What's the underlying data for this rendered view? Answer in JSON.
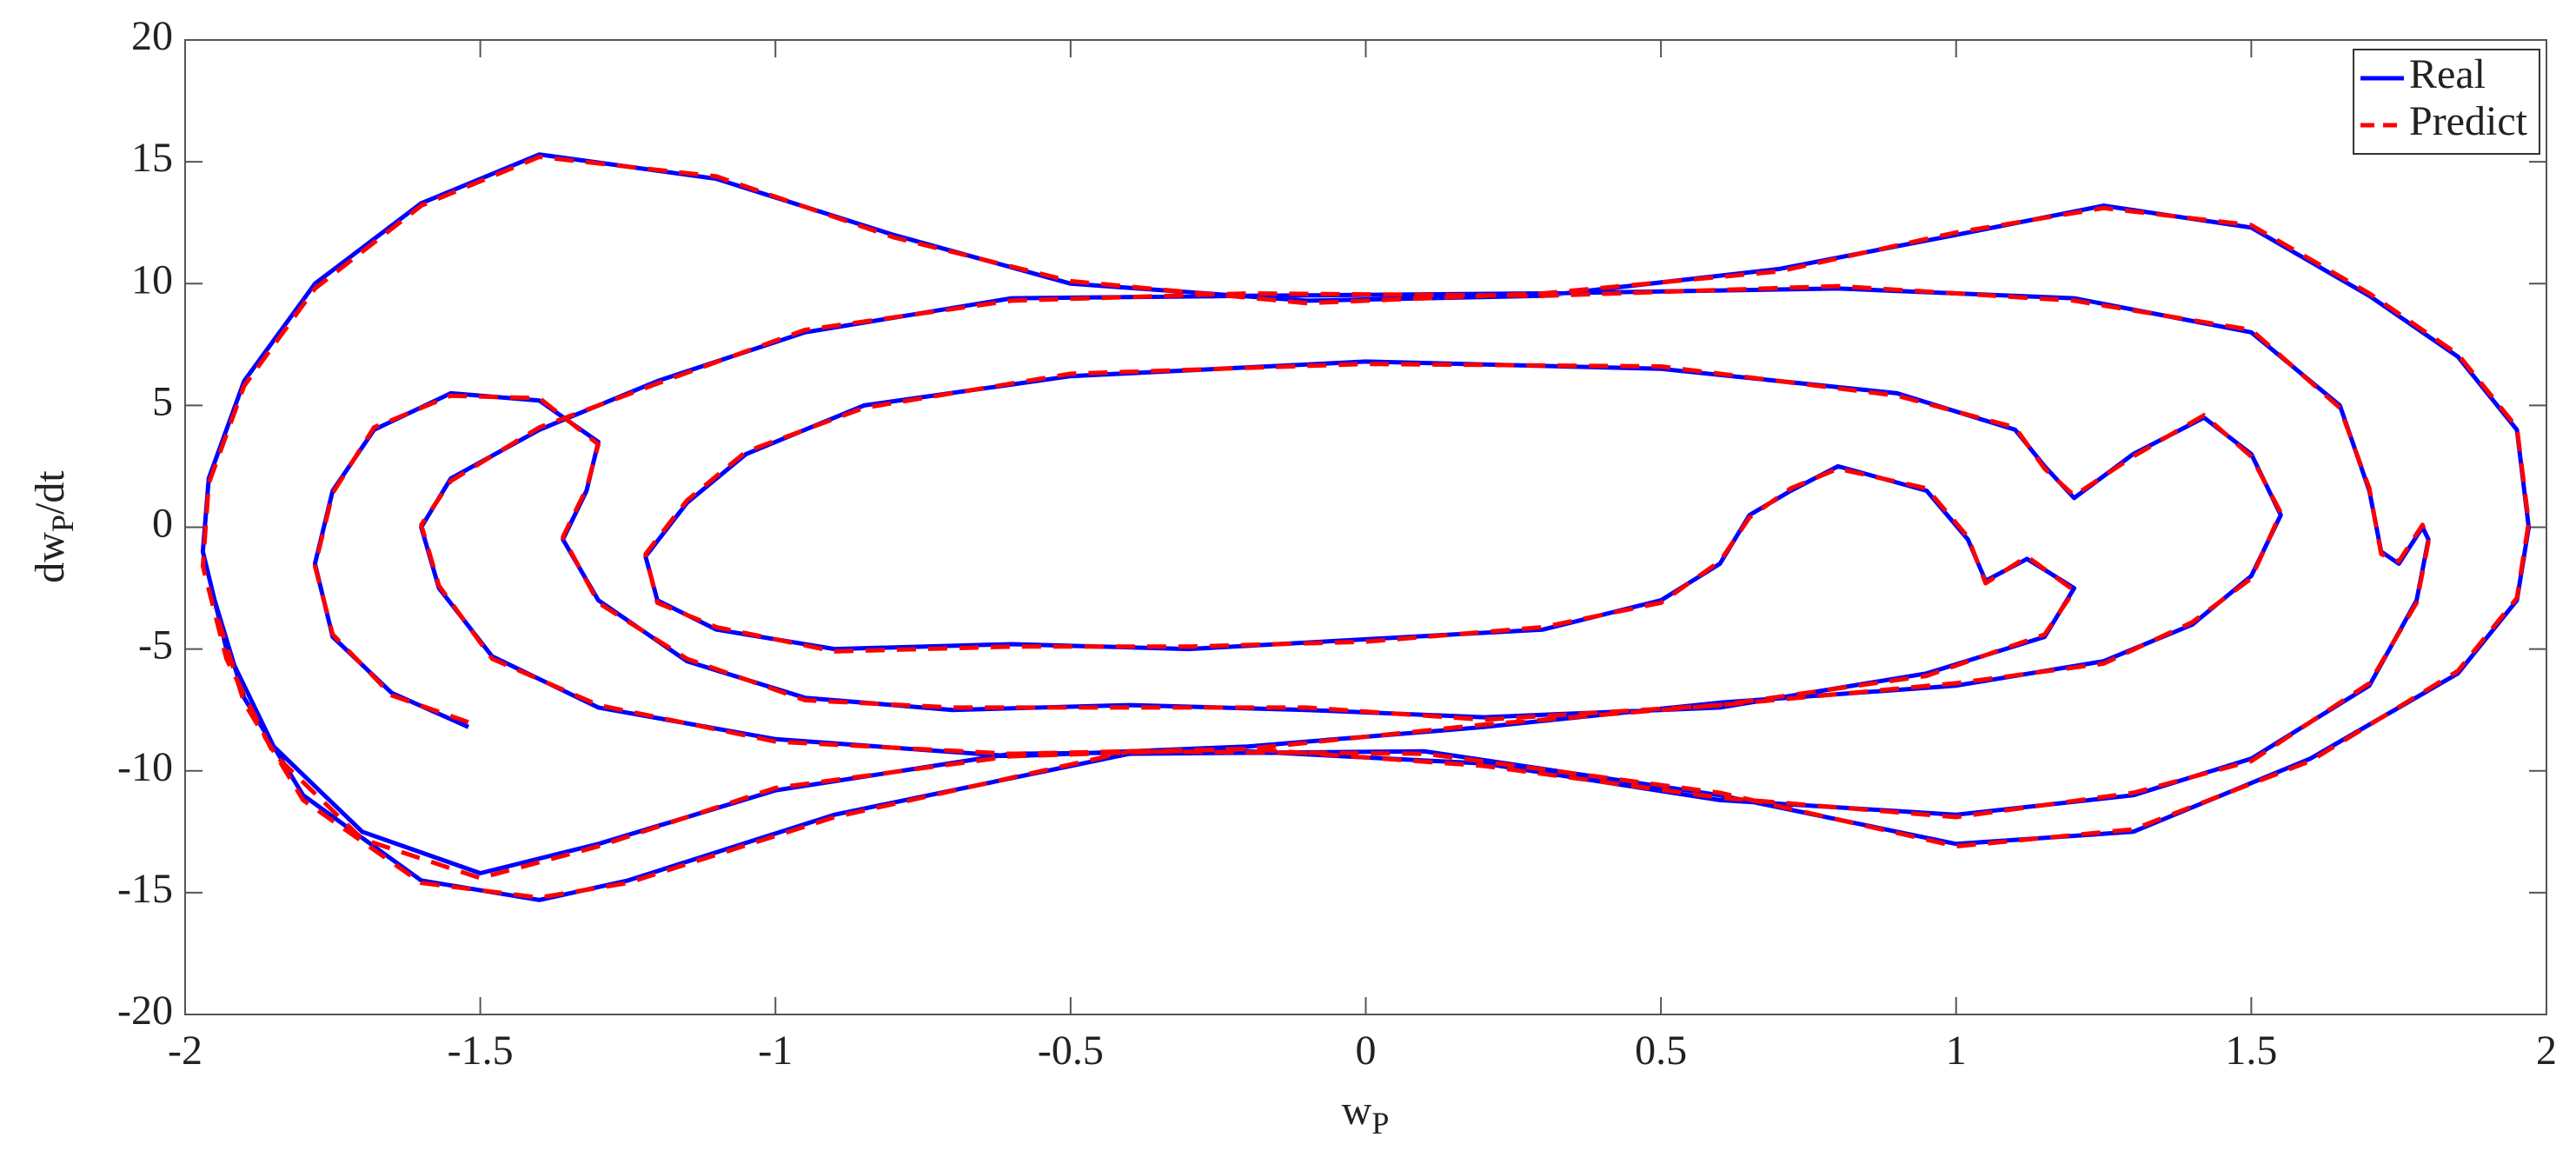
{
  "chart_data": {
    "type": "line",
    "xlabel": [
      "w",
      "P"
    ],
    "ylabel": [
      "dw",
      "P",
      "/dt"
    ],
    "xlim": [
      -2,
      2
    ],
    "ylim": [
      -20,
      20
    ],
    "xticks": [
      -2,
      -1.5,
      -1,
      -0.5,
      0,
      0.5,
      1,
      1.5,
      2
    ],
    "yticks": [
      -20,
      -15,
      -10,
      -5,
      0,
      5,
      10,
      15,
      20
    ],
    "grid": false,
    "legend": "upper right",
    "x": [
      -1.52,
      -1.65,
      -1.75,
      -1.78,
      -1.75,
      -1.68,
      -1.55,
      -1.4,
      -1.3,
      -1.32,
      -1.36,
      -1.3,
      -1.15,
      -0.95,
      -0.7,
      -0.4,
      -0.1,
      0.2,
      0.6,
      0.95,
      1.15,
      1.2,
      1.12,
      1.05,
      1.02,
      0.95,
      0.8,
      0.72,
      0.65,
      0.6,
      0.5,
      0.3,
      0,
      -0.3,
      -0.6,
      -0.9,
      -1.1,
      -1.2,
      -1.22,
      -1.15,
      -1.05,
      -0.85,
      -0.5,
      0,
      0.5,
      0.9,
      1.1,
      1.15,
      1.2,
      1.3,
      1.42,
      1.5,
      1.55,
      1.5,
      1.4,
      1.25,
      1.0,
      0.6,
      0.2,
      -0.2,
      -0.6,
      -1.0,
      -1.3,
      -1.48,
      -1.57,
      -1.6,
      -1.55,
      -1.4,
      -1.2,
      -0.95,
      -0.6,
      -0.2,
      0.3,
      0.8,
      1.2,
      1.5,
      1.65,
      1.7,
      1.72,
      1.75,
      1.79,
      1.8,
      1.78,
      1.7,
      1.5,
      1.3,
      1.0,
      0.6,
      0.2,
      -0.2,
      -0.6,
      -1.0,
      -1.3,
      -1.5,
      -1.7,
      -1.85,
      -1.93,
      -1.97,
      -1.96,
      -1.9,
      -1.78,
      -1.6,
      -1.4,
      -1.1,
      -0.8,
      -0.5,
      -0.1,
      0.3,
      0.7,
      1.0,
      1.25,
      1.5,
      1.7,
      1.85,
      1.95,
      1.97,
      1.95,
      1.85,
      1.6,
      1.3,
      1.0,
      0.6,
      0.1,
      -0.4,
      -0.9,
      -1.25,
      -1.4,
      -1.6,
      -1.8,
      -1.9,
      -1.95
    ],
    "series": [
      {
        "name": "Real",
        "color": "#0000ff",
        "line_style": "solid",
        "values": [
          -8.2,
          -6.8,
          -4.5,
          -1.5,
          1.5,
          4,
          5.5,
          5.2,
          3.5,
          1.5,
          -0.5,
          -3,
          -5.5,
          -7,
          -7.5,
          -7.3,
          -7.5,
          -7.8,
          -7.4,
          -6,
          -4.5,
          -2.5,
          -1.3,
          -2.2,
          -0.5,
          1.5,
          2.5,
          1.5,
          0.5,
          -1.5,
          -3,
          -4.2,
          -4.6,
          -5,
          -4.8,
          -5,
          -4.2,
          -3,
          -1.2,
          1,
          3,
          5,
          6.2,
          6.8,
          6.5,
          5.5,
          4,
          2.5,
          1.2,
          3,
          4.5,
          3,
          0.5,
          -2,
          -4,
          -5.5,
          -6.5,
          -7.2,
          -8.2,
          -9,
          -9.4,
          -8.7,
          -7.4,
          -5.3,
          -2.5,
          0,
          2,
          4,
          6,
          8,
          9.4,
          9.5,
          9.6,
          9.8,
          9.4,
          8,
          5,
          1.5,
          -1,
          -1.5,
          0,
          -0.5,
          -3,
          -6.5,
          -9.5,
          -11,
          -11.8,
          -11.2,
          -9.7,
          -9.2,
          -9.3,
          -10.8,
          -13,
          -14.2,
          -12.5,
          -9,
          -5,
          -1,
          2,
          6,
          10,
          13.3,
          15.3,
          14.3,
          12,
          10,
          9.3,
          9.5,
          10.6,
          12,
          13.2,
          12.3,
          9.5,
          7,
          4,
          0,
          -3,
          -6,
          -9.5,
          -12.5,
          -13,
          -11,
          -9.2,
          -9.3,
          -11.8,
          -14.5,
          -15.3,
          -14.5,
          -11,
          -7,
          -3
        ]
      },
      {
        "name": "Predict",
        "color": "#ff0000",
        "line_style": "dashed",
        "values": [
          -8.0,
          -6.9,
          -4.4,
          -1.6,
          1.4,
          4.1,
          5.4,
          5.3,
          3.4,
          1.6,
          -0.4,
          -3.1,
          -5.4,
          -7.1,
          -7.4,
          -7.4,
          -7.4,
          -7.9,
          -7.3,
          -6.1,
          -4.4,
          -2.6,
          -1.2,
          -2.3,
          -0.4,
          1.6,
          2.4,
          1.6,
          0.4,
          -1.4,
          -3.1,
          -4.1,
          -4.7,
          -4.9,
          -4.9,
          -5.1,
          -4.1,
          -3.1,
          -1.1,
          1.1,
          3.1,
          4.9,
          6.3,
          6.7,
          6.6,
          5.4,
          4.1,
          2.4,
          1.3,
          2.9,
          4.6,
          2.9,
          0.6,
          -2.1,
          -3.9,
          -5.6,
          -6.4,
          -7.3,
          -8.1,
          -9.1,
          -9.3,
          -8.8,
          -7.3,
          -5.4,
          -2.4,
          0.1,
          1.9,
          4.1,
          5.9,
          8.1,
          9.3,
          9.6,
          9.5,
          9.9,
          9.3,
          8.1,
          4.9,
          1.6,
          -1.1,
          -1.4,
          0.1,
          -0.6,
          -3.1,
          -6.4,
          -9.6,
          -10.9,
          -11.9,
          -11.1,
          -9.8,
          -9.1,
          -9.4,
          -10.7,
          -13.1,
          -14.4,
          -12.8,
          -9.3,
          -5.4,
          -1.6,
          1.8,
          5.8,
          9.8,
          13.2,
          15.2,
          14.4,
          11.9,
          10.1,
          9.2,
          9.6,
          10.5,
          12.1,
          13.1,
          12.4,
          9.6,
          7.1,
          4.1,
          0.2,
          -2.9,
          -5.9,
          -9.6,
          -12.4,
          -13.1,
          -10.9,
          -9.3,
          -9.2,
          -11.9,
          -14.6,
          -15.2,
          -14.6,
          -11.2,
          -7.2,
          -3.3
        ]
      }
    ]
  }
}
